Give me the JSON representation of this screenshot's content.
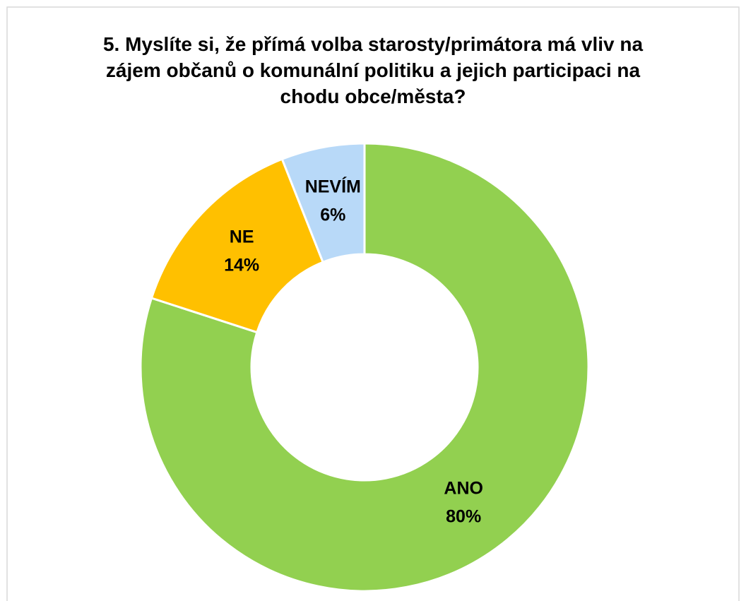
{
  "chart_data": {
    "type": "donut",
    "title": "5. Myslíte si, že přímá volba starosty/primátora má vliv na zájem občanů o komunální politiku a jejich participaci na chodu obce/města?",
    "categories": [
      "ANO",
      "NE",
      "NEVÍM"
    ],
    "values": [
      80,
      14,
      6
    ],
    "value_labels": [
      "80%",
      "14%",
      "6%"
    ],
    "colors": [
      "#92d050",
      "#ffc000",
      "#b8d9f8"
    ]
  }
}
